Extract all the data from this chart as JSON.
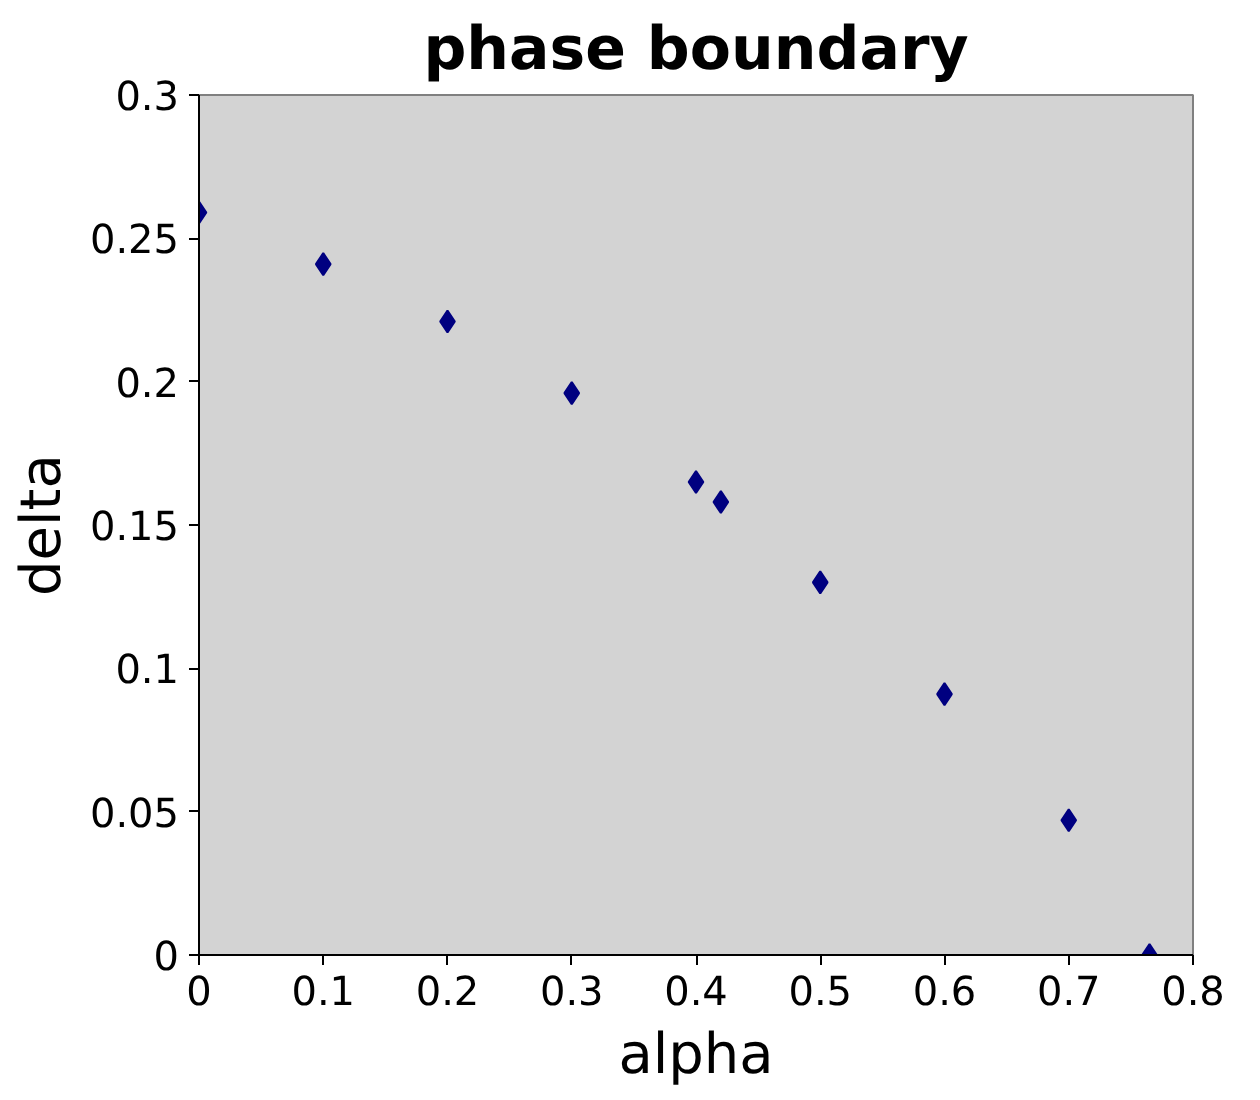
{
  "chart_data": {
    "type": "scatter",
    "title": "phase boundary",
    "xlabel": "alpha",
    "ylabel": "delta",
    "x": [
      0,
      0.1,
      0.2,
      0.3,
      0.4,
      0.42,
      0.5,
      0.6,
      0.7,
      0.765
    ],
    "series": [
      {
        "color": "#000080",
        "values": [
          0.259,
          0.241,
          0.221,
          0.196,
          0.165,
          0.158,
          0.13,
          0.091,
          0.047,
          0
        ]
      }
    ],
    "xlim": [
      0,
      0.8
    ],
    "ylim": [
      0,
      0.3
    ],
    "xticks": [
      0,
      0.1,
      0.2,
      0.3,
      0.4,
      0.5,
      0.6,
      0.7,
      0.8
    ],
    "yticks": [
      0,
      0.05,
      0.1,
      0.15,
      0.2,
      0.25,
      0.3
    ],
    "marker": "diamond"
  }
}
